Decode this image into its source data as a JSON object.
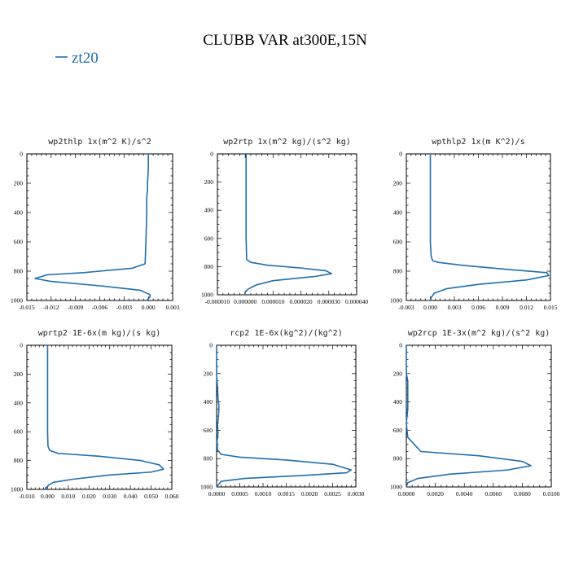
{
  "figure": {
    "title": "CLUBB VAR at300E,15N",
    "legend": [
      {
        "label": "zt20",
        "color": "#1f6fae"
      }
    ],
    "series_color": "#1f6fae"
  },
  "chart_data": [
    {
      "type": "line",
      "title": "wp2thlp  1x(m^2 K)/s^2",
      "xlim": [
        -0.015,
        0.003
      ],
      "ylim": [
        1000,
        0
      ],
      "x_ticks": [
        "-0.015",
        "-0.012",
        "-0.009",
        "-0.006",
        "-0.003",
        "0.000",
        "0.003"
      ],
      "x_tick_values": [
        -0.015,
        -0.012,
        -0.009,
        -0.006,
        -0.003,
        0.0,
        0.003
      ],
      "y_ticks": [
        "0",
        "200",
        "400",
        "600",
        "800",
        "1000"
      ],
      "y_tick_values": [
        0,
        200,
        400,
        600,
        800,
        1000
      ],
      "series": [
        {
          "name": "zt20",
          "x": [
            0.0,
            0.0,
            -0.0001,
            -0.0001,
            -0.0002,
            -0.0002,
            -0.0003,
            -0.0004,
            -0.002,
            -0.008,
            -0.0125,
            -0.014,
            -0.012,
            -0.006,
            -0.001,
            0.0002,
            0.0002,
            -0.0002
          ],
          "y": [
            0,
            100,
            200,
            240,
            300,
            400,
            600,
            750,
            780,
            810,
            825,
            850,
            870,
            900,
            930,
            960,
            975,
            1000
          ]
        }
      ]
    },
    {
      "type": "line",
      "title": "wp2rtp  1x(m^2 kg)/(s^2 kg)",
      "xlim": [
        -1e-05,
        4e-05
      ],
      "ylim": [
        1000,
        0
      ],
      "x_ticks": [
        "-0.000010",
        "0.000000",
        "0.000010",
        "0.000020",
        "0.000030",
        "0.000040"
      ],
      "x_tick_values": [
        -1e-05,
        0.0,
        1e-05,
        2e-05,
        3e-05,
        4e-05
      ],
      "y_ticks": [
        "0",
        "200",
        "400",
        "600",
        "800",
        "1000"
      ],
      "y_tick_values": [
        0,
        200,
        400,
        600,
        800,
        1000
      ],
      "series": [
        {
          "name": "zt20",
          "x": [
            3e-07,
            3e-07,
            3e-07,
            3e-07,
            5e-07,
            2e-06,
            8e-06,
            2e-05,
            2.9e-05,
            3.1e-05,
            2.5e-05,
            1e-05,
            4e-06,
            1e-06,
            0.0,
            -2e-07
          ],
          "y": [
            0,
            200,
            400,
            600,
            750,
            770,
            790,
            810,
            830,
            850,
            870,
            900,
            930,
            960,
            980,
            1000
          ]
        }
      ]
    },
    {
      "type": "line",
      "title": "wpthlp2  1x(m K^2)/s",
      "xlim": [
        -0.003,
        0.015
      ],
      "ylim": [
        1000,
        0
      ],
      "x_ticks": [
        "-0.003",
        "0.000",
        "0.003",
        "0.006",
        "0.009",
        "0.012",
        "0.015"
      ],
      "x_tick_values": [
        -0.003,
        0.0,
        0.003,
        0.006,
        0.009,
        0.012,
        0.015
      ],
      "y_ticks": [
        "0",
        "200",
        "400",
        "600",
        "800",
        "1000"
      ],
      "y_tick_values": [
        0,
        200,
        400,
        600,
        800,
        1000
      ],
      "series": [
        {
          "name": "zt20",
          "x": [
            0.0,
            0.0,
            0.0,
            0.0,
            0.0001,
            0.0003,
            0.001,
            0.004,
            0.01,
            0.0145,
            0.0148,
            0.012,
            0.006,
            0.002,
            0.0005,
            0.0001,
            0.0
          ],
          "y": [
            0,
            200,
            400,
            600,
            700,
            730,
            740,
            760,
            790,
            810,
            830,
            860,
            890,
            920,
            950,
            980,
            1000
          ]
        }
      ]
    },
    {
      "type": "line",
      "title": "wprtp2  1E-6x(m kg)/(s kg)",
      "xlim": [
        -0.01,
        0.06
      ],
      "ylim": [
        1000,
        0
      ],
      "x_ticks": [
        "-0.010",
        "0.000",
        "0.010",
        "0.020",
        "0.030",
        "0.040",
        "0.050",
        "0.060"
      ],
      "x_tick_values": [
        -0.01,
        0.0,
        0.01,
        0.02,
        0.03,
        0.04,
        0.05,
        0.06
      ],
      "y_ticks": [
        "0",
        "200",
        "400",
        "600",
        "800",
        "1000"
      ],
      "y_tick_values": [
        0,
        200,
        400,
        600,
        800,
        1000
      ],
      "series": [
        {
          "name": "zt20",
          "x": [
            0.0,
            0.0,
            0.0,
            0.0,
            0.0002,
            0.001,
            0.005,
            0.025,
            0.045,
            0.054,
            0.056,
            0.05,
            0.03,
            0.012,
            0.003,
            0.0005,
            0.0,
            -0.001,
            0.0
          ],
          "y": [
            0,
            200,
            400,
            600,
            700,
            730,
            750,
            770,
            800,
            830,
            860,
            880,
            900,
            930,
            950,
            970,
            980,
            990,
            1000
          ]
        }
      ]
    },
    {
      "type": "line",
      "title": "rcp2  1E-6x(kg^2)/(kg^2)",
      "xlim": [
        0.0,
        0.003
      ],
      "ylim": [
        1000,
        0
      ],
      "x_ticks": [
        "0.0000",
        "0.0005",
        "0.0010",
        "0.0015",
        "0.0020",
        "0.0025",
        "0.0030"
      ],
      "x_tick_values": [
        0.0,
        0.0005,
        0.001,
        0.0015,
        0.002,
        0.0025,
        0.003
      ],
      "y_ticks": [
        "0",
        "200",
        "400",
        "600",
        "800",
        "1000"
      ],
      "y_tick_values": [
        0,
        200,
        400,
        600,
        800,
        1000
      ],
      "series": [
        {
          "name": "zt20",
          "x": [
            0.0,
            0.0,
            2e-05,
            3e-05,
            5e-05,
            4e-05,
            2e-05,
            3e-05,
            1e-05,
            2e-05,
            0.0001,
            0.0005,
            0.0015,
            0.0025,
            0.0029,
            0.0028,
            0.0018,
            0.0006,
            0.0001,
            0.0
          ],
          "y": [
            0,
            200,
            300,
            380,
            430,
            500,
            560,
            620,
            680,
            740,
            770,
            790,
            810,
            840,
            880,
            900,
            920,
            940,
            960,
            1000
          ]
        }
      ]
    },
    {
      "type": "line",
      "title": "wp2rcp  1E-3x(m^2 kg)/(s^2 kg)",
      "xlim": [
        0.0,
        0.01
      ],
      "ylim": [
        1000,
        0
      ],
      "x_ticks": [
        "0.0000",
        "0.0020",
        "0.0040",
        "0.0060",
        "0.0080",
        "0.0100"
      ],
      "x_tick_values": [
        0.0,
        0.002,
        0.004,
        0.006,
        0.008,
        0.01
      ],
      "y_ticks": [
        "0",
        "200",
        "400",
        "600",
        "800",
        "1000"
      ],
      "y_tick_values": [
        0,
        200,
        400,
        600,
        800,
        1000
      ],
      "series": [
        {
          "name": "zt20",
          "x": [
            0.0,
            0.0,
            0.0001,
            0.0001,
            0.0001,
            0.0,
            0.0001,
            0.001,
            0.005,
            0.008,
            0.0086,
            0.007,
            0.003,
            0.0008,
            0.0001,
            0.0
          ],
          "y": [
            0,
            200,
            250,
            350,
            450,
            550,
            650,
            750,
            780,
            820,
            850,
            880,
            910,
            940,
            970,
            1000
          ]
        }
      ]
    }
  ]
}
